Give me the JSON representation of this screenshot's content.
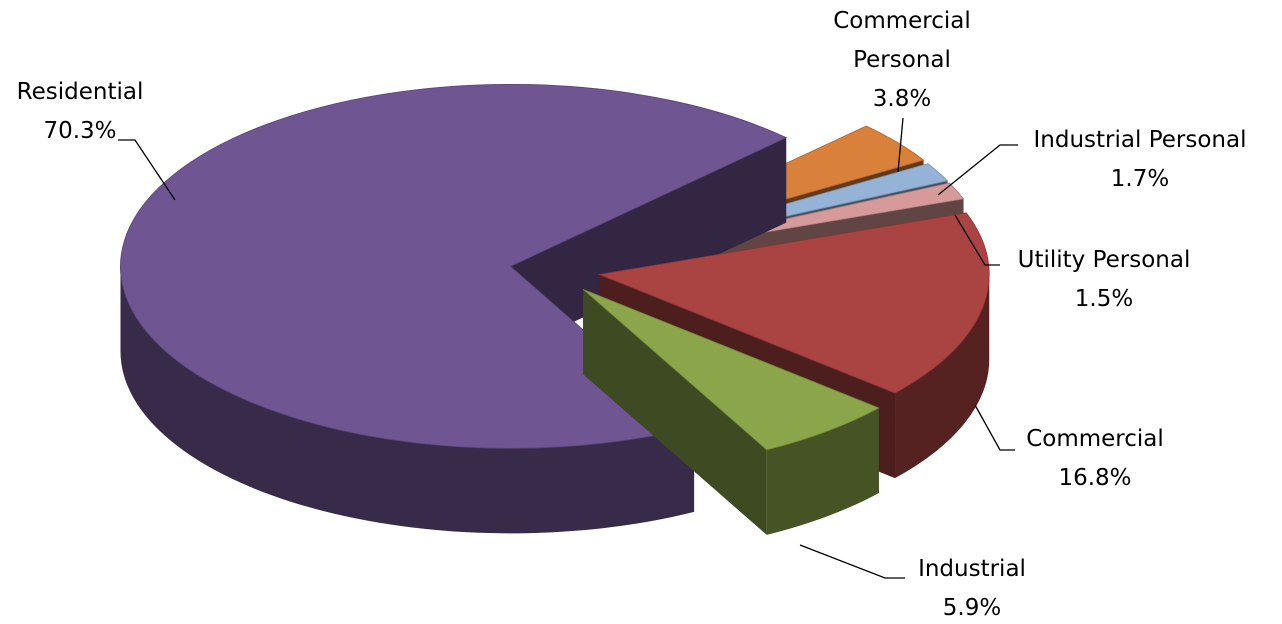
{
  "chart_data": {
    "type": "pie",
    "categories": [
      "Commercial Personal",
      "Industrial Personal",
      "Utility Personal",
      "Commercial",
      "Industrial",
      "Residential"
    ],
    "values": [
      3.8,
      1.7,
      1.5,
      16.8,
      5.9,
      70.3
    ],
    "value_labels": [
      "3.8%",
      "1.7%",
      "1.5%",
      "16.8%",
      "5.9%",
      "70.3%"
    ],
    "colors": [
      "#d9813a",
      "#95b3d7",
      "#d79a9a",
      "#a94442",
      "#8aa54a",
      "#6f5592"
    ]
  }
}
